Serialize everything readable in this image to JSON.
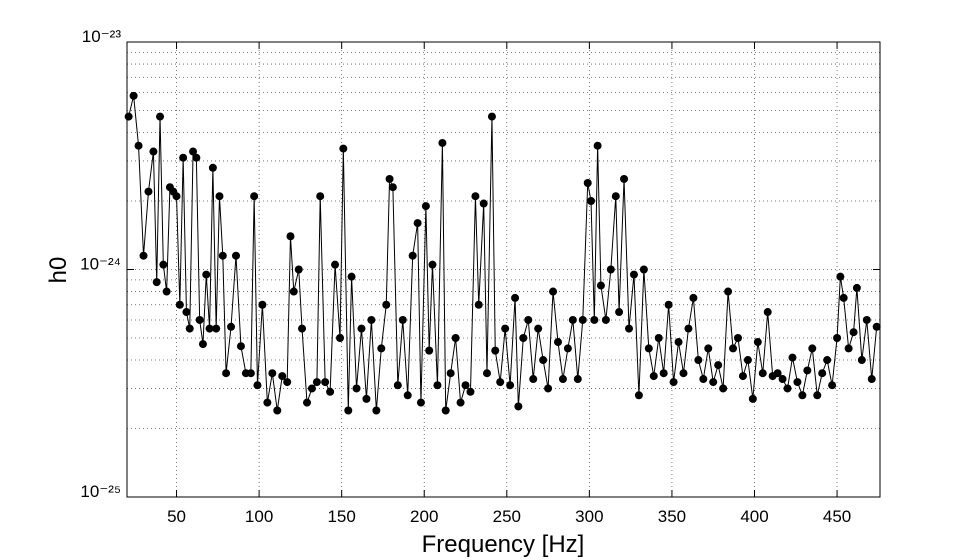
{
  "chart_data": {
    "type": "line",
    "x_label": "Frequency [Hz]",
    "y_label": "h0",
    "x": [
      21,
      24,
      27,
      30,
      33,
      36,
      38,
      40,
      42,
      44,
      46,
      48,
      50,
      52,
      54,
      56,
      58,
      60,
      62,
      64,
      66,
      68,
      70,
      72,
      74,
      76,
      78,
      80,
      83,
      86,
      89,
      92,
      95,
      97,
      99,
      102,
      105,
      108,
      111,
      114,
      117,
      119,
      121,
      124,
      126,
      129,
      132,
      135,
      137,
      140,
      143,
      146,
      149,
      151,
      154,
      156,
      159,
      162,
      165,
      168,
      171,
      174,
      177,
      179,
      181,
      184,
      187,
      190,
      193,
      196,
      198,
      201,
      203,
      205,
      208,
      211,
      213,
      216,
      219,
      222,
      225,
      228,
      231,
      233,
      236,
      238,
      241,
      243,
      246,
      249,
      252,
      255,
      257,
      260,
      263,
      266,
      269,
      272,
      275,
      278,
      281,
      284,
      287,
      290,
      293,
      296,
      299,
      301,
      303,
      305,
      307,
      310,
      313,
      316,
      318,
      321,
      324,
      327,
      330,
      333,
      336,
      339,
      342,
      345,
      348,
      351,
      354,
      357,
      360,
      363,
      366,
      369,
      372,
      375,
      378,
      381,
      384,
      387,
      390,
      393,
      396,
      399,
      402,
      405,
      408,
      411,
      414,
      417,
      420,
      423,
      426,
      429,
      432,
      435,
      438,
      441,
      444,
      447,
      450,
      452,
      454,
      457,
      460,
      462,
      465,
      468,
      471,
      474
    ],
    "series": [
      {
        "name": "h0",
        "color": "#000000",
        "values": [
          4.7e-24,
          5.8e-24,
          3.5e-24,
          1.15e-24,
          2.2e-24,
          3.3e-24,
          8.8e-25,
          4.7e-24,
          1.05e-24,
          8e-25,
          2.3e-24,
          2.2e-24,
          2.1e-24,
          7e-25,
          3.1e-24,
          6.5e-25,
          5.5e-25,
          3.3e-24,
          3.1e-24,
          6e-25,
          4.7e-25,
          9.5e-25,
          5.5e-25,
          2.8e-24,
          5.5e-25,
          2.1e-24,
          1.15e-24,
          3.5e-25,
          5.6e-25,
          1.15e-24,
          4.6e-25,
          3.5e-25,
          3.5e-25,
          2.1e-24,
          3.1e-25,
          7e-25,
          2.6e-25,
          3.5e-25,
          2.4e-25,
          3.4e-25,
          3.2e-25,
          1.4e-24,
          8e-25,
          1e-24,
          5.5e-25,
          2.6e-25,
          3e-25,
          3.2e-25,
          2.1e-24,
          3.2e-25,
          2.9e-25,
          1.05e-24,
          5e-25,
          3.4e-24,
          2.4e-25,
          9.3e-25,
          3e-25,
          5.5e-25,
          2.7e-25,
          6e-25,
          2.4e-25,
          4.5e-25,
          7e-25,
          2.5e-24,
          2.3e-24,
          3.1e-25,
          6e-25,
          2.8e-25,
          1.15e-24,
          1.6e-24,
          2.6e-25,
          1.9e-24,
          4.4e-25,
          1.05e-24,
          3.1e-25,
          3.6e-24,
          2.4e-25,
          3.5e-25,
          5e-25,
          2.6e-25,
          3.1e-25,
          2.9e-25,
          2.1e-24,
          7e-25,
          1.95e-24,
          3.5e-25,
          4.7e-24,
          4.4e-25,
          3.2e-25,
          5.5e-25,
          3.1e-25,
          7.5e-25,
          2.5e-25,
          5e-25,
          6e-25,
          3.3e-25,
          5.5e-25,
          4e-25,
          3e-25,
          8e-25,
          4.8e-25,
          3.3e-25,
          4.5e-25,
          6e-25,
          3.3e-25,
          6e-25,
          2.4e-24,
          2e-24,
          6e-25,
          3.5e-24,
          8.5e-25,
          6e-25,
          1e-24,
          2.1e-24,
          6.5e-25,
          2.5e-24,
          5.5e-25,
          9.5e-25,
          2.8e-25,
          1e-24,
          4.5e-25,
          3.4e-25,
          5e-25,
          3.5e-25,
          7e-25,
          3.2e-25,
          4.8e-25,
          3.5e-25,
          5.5e-25,
          7.5e-25,
          4e-25,
          3.3e-25,
          4.5e-25,
          3.2e-25,
          3.8e-25,
          3e-25,
          8e-25,
          4.5e-25,
          5e-25,
          3.4e-25,
          4e-25,
          2.7e-25,
          4.8e-25,
          3.5e-25,
          6.5e-25,
          3.4e-25,
          3.5e-25,
          3.3e-25,
          3e-25,
          4.1e-25,
          3.2e-25,
          2.8e-25,
          3.6e-25,
          4.5e-25,
          2.8e-25,
          3.5e-25,
          4e-25,
          3.1e-25,
          5e-25,
          9.3e-25,
          7.5e-25,
          4.5e-25,
          5.3e-25,
          8.3e-25,
          4e-25,
          6e-25,
          3.3e-25,
          5.6e-25
        ]
      }
    ],
    "xlim": [
      20,
      476
    ],
    "xticks": [
      50,
      100,
      150,
      200,
      250,
      300,
      350,
      400,
      450
    ],
    "ylim": [
      1e-25,
      1e-23
    ],
    "log_y": true,
    "yticks": [
      {
        "value": 1e-25,
        "label": "10⁻²⁵"
      },
      {
        "value": 1e-24,
        "label": "10⁻²⁴"
      },
      {
        "value": 1e-23,
        "label": "10⁻²³"
      }
    ],
    "grid": true
  }
}
